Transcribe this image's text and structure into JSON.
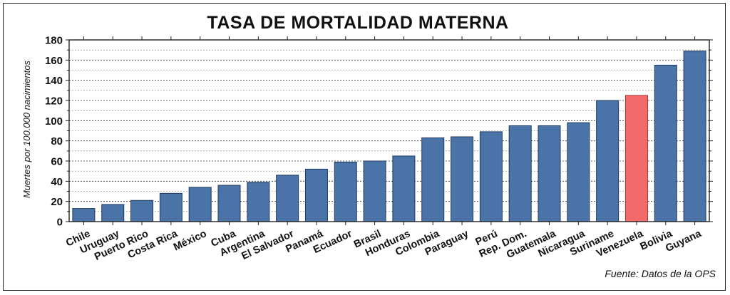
{
  "chart_data": {
    "type": "bar",
    "title": "TASA DE MORTALIDAD MATERNA",
    "ylabel": "Muertes por 100.000 nacimientos",
    "xlabel": "",
    "ylim": [
      0,
      180
    ],
    "yticks": [
      0,
      20,
      40,
      60,
      80,
      100,
      120,
      140,
      160,
      180
    ],
    "grid": true,
    "categories": [
      "Chile",
      "Uruguay",
      "Puerto Rico",
      "Costa Rica",
      "México",
      "Cuba",
      "Argentina",
      "El Salvador",
      "Panamá",
      "Ecuador",
      "Brasil",
      "Honduras",
      "Colombia",
      "Paraguay",
      "Perú",
      "Rep. Dom.",
      "Guatemala",
      "Nicaragua",
      "Suriname",
      "Venezuela",
      "Bolivia",
      "Guyana"
    ],
    "values": [
      13,
      17,
      21,
      28,
      34,
      36,
      39,
      46,
      52,
      59,
      60,
      65,
      83,
      84,
      89,
      95,
      95,
      98,
      120,
      125,
      155,
      169
    ],
    "highlight": "Venezuela",
    "colors": {
      "bar": "#4a74a8",
      "highlight": "#f26a6a",
      "bar_stroke": "#1e3a5f",
      "highlight_stroke": "#b03030"
    }
  },
  "source_note": "Fuente: Datos de la OPS"
}
